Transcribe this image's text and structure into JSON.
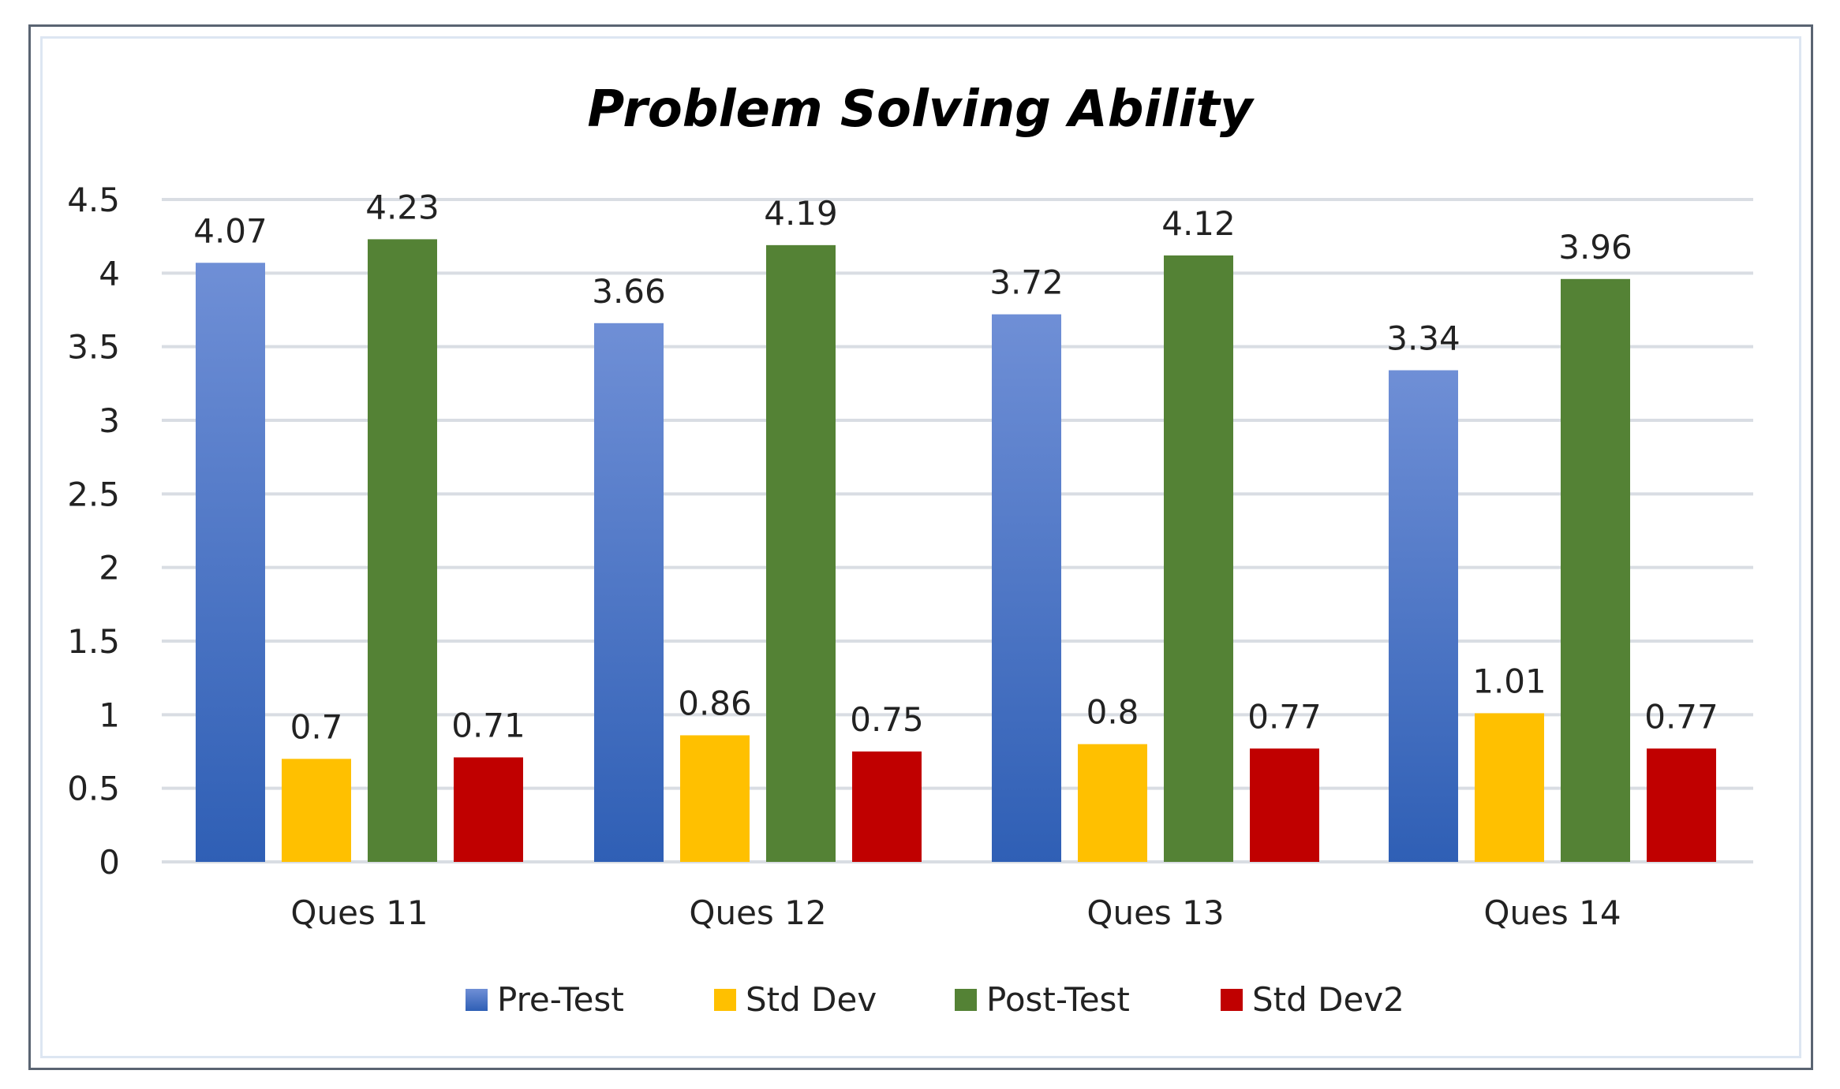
{
  "chart_data": {
    "type": "bar",
    "title": "Problem Solving Ability",
    "xlabel": "",
    "ylabel": "",
    "ylim": [
      0,
      4.5
    ],
    "yticks": [
      "0",
      "0.5",
      "1",
      "1.5",
      "2",
      "2.5",
      "3",
      "3.5",
      "4",
      "4.5"
    ],
    "ytick_values": [
      0,
      0.5,
      1,
      1.5,
      2,
      2.5,
      3,
      3.5,
      4,
      4.5
    ],
    "grid": true,
    "legend_position": "bottom",
    "categories": [
      "Ques 11",
      "Ques 12",
      "Ques 13",
      "Ques 14"
    ],
    "series": [
      {
        "name": "Pre-Test",
        "values": [
          4.07,
          3.66,
          3.72,
          3.34
        ],
        "labels": [
          "4.07",
          "3.66",
          "3.72",
          "3.34"
        ],
        "color": "#4472c4",
        "color_light": "#6f8fd6",
        "color_dark": "#2f5fb5"
      },
      {
        "name": "Std Dev",
        "values": [
          0.7,
          0.86,
          0.8,
          1.01
        ],
        "labels": [
          "0.7",
          "0.86",
          "0.8",
          "1.01"
        ],
        "color": "#ffc000"
      },
      {
        "name": "Post-Test",
        "values": [
          4.23,
          4.19,
          4.12,
          3.96
        ],
        "labels": [
          "4.23",
          "4.19",
          "4.12",
          "3.96"
        ],
        "color": "#548235"
      },
      {
        "name": "Std Dev2",
        "values": [
          0.71,
          0.75,
          0.77,
          0.77
        ],
        "labels": [
          "0.71",
          "0.75",
          "0.77",
          "0.77"
        ],
        "color": "#c00000"
      }
    ],
    "gridline_color": "#d9dde3"
  }
}
